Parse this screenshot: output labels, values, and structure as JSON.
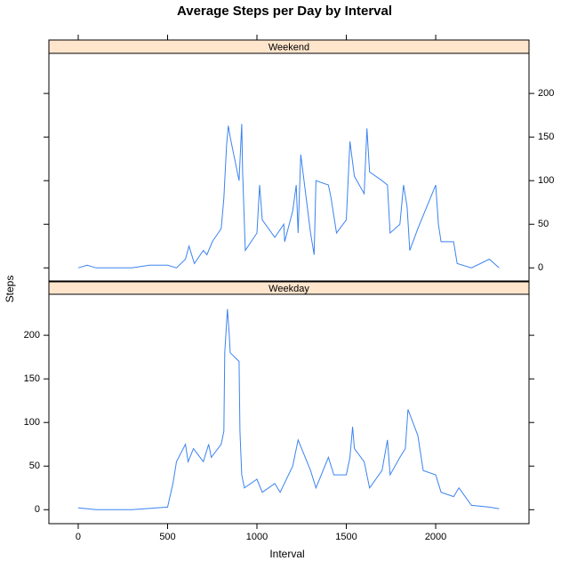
{
  "chart_data": {
    "type": "line",
    "title": "Average Steps per Day by Interval",
    "x_label": "Interval",
    "y_label": "Steps",
    "color": "#3b83f0",
    "xlim": [
      -164,
      2522
    ],
    "xticks": [
      0,
      500,
      1000,
      1500,
      2000
    ],
    "panels": [
      {
        "strip": "Weekend",
        "ylim": [
          -15,
          246
        ],
        "yticks": [
          0,
          50,
          100,
          150,
          200
        ],
        "x": [
          0,
          50,
          100,
          300,
          400,
          500,
          550,
          600,
          620,
          650,
          700,
          720,
          750,
          800,
          815,
          830,
          840,
          850,
          900,
          915,
          920,
          935,
          1000,
          1015,
          1030,
          1100,
          1150,
          1155,
          1200,
          1220,
          1230,
          1245,
          1300,
          1320,
          1330,
          1400,
          1415,
          1445,
          1500,
          1520,
          1545,
          1600,
          1615,
          1630,
          1700,
          1730,
          1745,
          1800,
          1820,
          1840,
          1855,
          1900,
          1930,
          2000,
          2015,
          2030,
          2100,
          2120,
          2200,
          2300,
          2355
        ],
        "values": [
          0,
          3,
          0,
          0,
          3,
          3,
          0,
          10,
          25,
          5,
          20,
          15,
          30,
          45,
          80,
          140,
          163,
          150,
          100,
          165,
          110,
          20,
          40,
          95,
          55,
          35,
          50,
          30,
          65,
          95,
          40,
          130,
          40,
          15,
          100,
          95,
          80,
          40,
          55,
          145,
          105,
          85,
          160,
          110,
          100,
          95,
          40,
          50,
          95,
          70,
          20,
          45,
          60,
          95,
          50,
          30,
          30,
          5,
          0,
          10,
          0
        ]
      },
      {
        "strip": "Weekday",
        "ylim": [
          -16,
          247
        ],
        "yticks": [
          0,
          50,
          100,
          150,
          200
        ],
        "x": [
          0,
          100,
          300,
          500,
          530,
          550,
          600,
          615,
          645,
          700,
          730,
          745,
          800,
          815,
          820,
          835,
          845,
          850,
          900,
          905,
          915,
          930,
          1000,
          1030,
          1100,
          1130,
          1200,
          1230,
          1300,
          1330,
          1400,
          1430,
          1500,
          1520,
          1535,
          1545,
          1600,
          1630,
          1700,
          1730,
          1745,
          1800,
          1830,
          1845,
          1900,
          1930,
          2000,
          2030,
          2100,
          2130,
          2200,
          2300,
          2355
        ],
        "values": [
          2,
          0,
          0,
          3,
          30,
          55,
          75,
          55,
          70,
          55,
          75,
          60,
          75,
          90,
          180,
          230,
          200,
          180,
          170,
          90,
          40,
          25,
          35,
          20,
          30,
          20,
          50,
          80,
          45,
          25,
          60,
          40,
          40,
          60,
          95,
          70,
          55,
          25,
          45,
          80,
          40,
          60,
          70,
          115,
          85,
          45,
          40,
          20,
          15,
          25,
          5,
          3,
          1
        ]
      }
    ]
  }
}
